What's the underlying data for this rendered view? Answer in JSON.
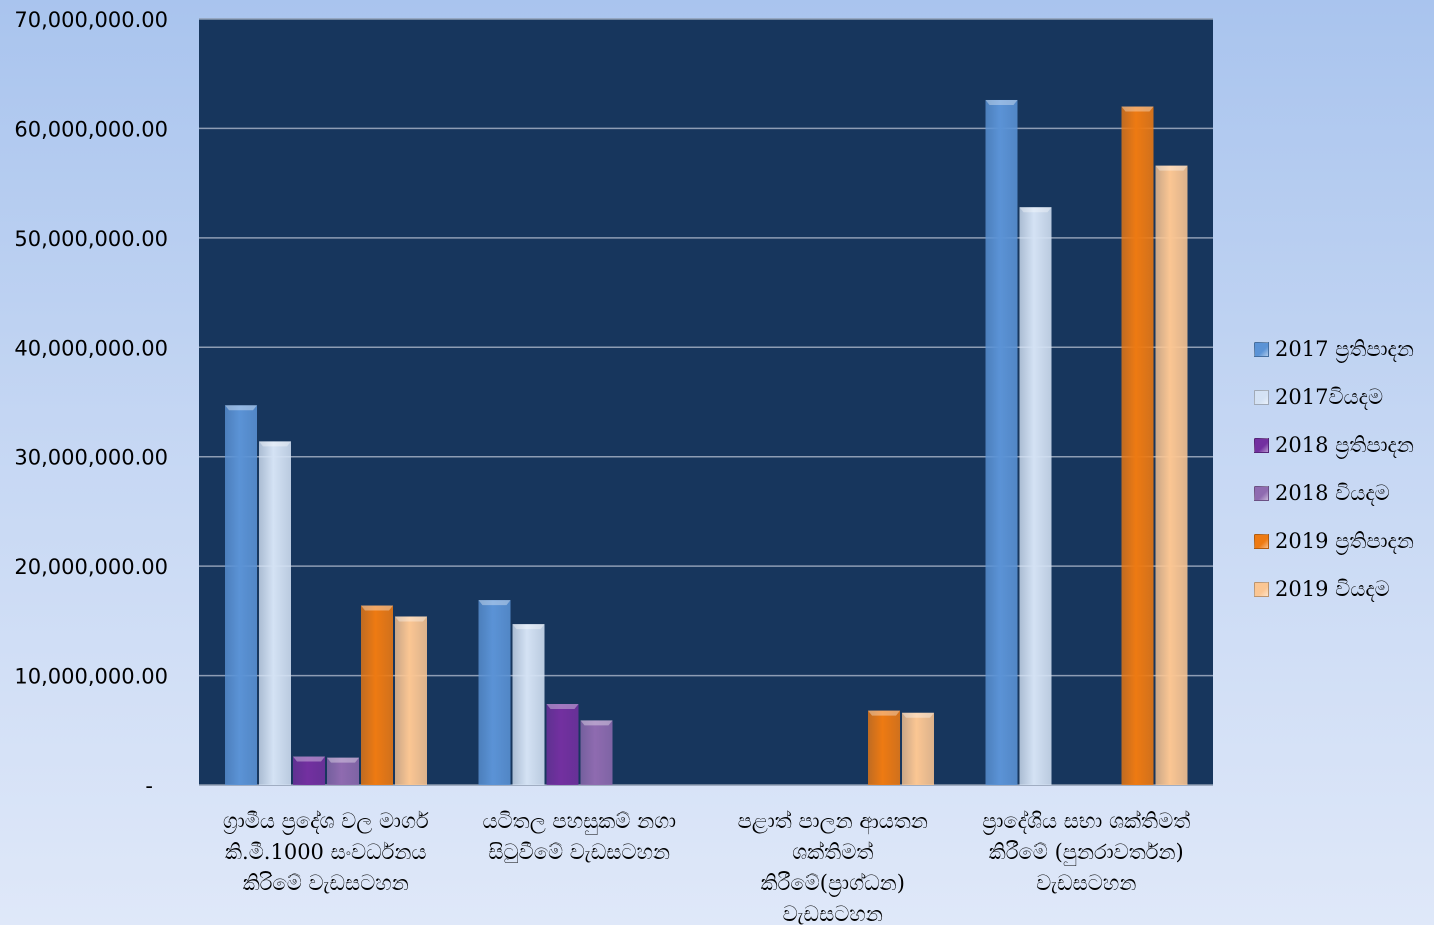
{
  "chart_data": {
    "type": "bar",
    "title": "",
    "xlabel": "",
    "ylabel": "",
    "ylim": [
      0,
      70000000
    ],
    "ytick_values": [
      0,
      10000000,
      20000000,
      30000000,
      40000000,
      50000000,
      60000000,
      70000000
    ],
    "ytick_labels": [
      "-",
      "10,000,000.00",
      "20,000,000.00",
      "30,000,000.00",
      "40,000,000.00",
      "50,000,000.00",
      "60,000,000.00",
      "70,000,000.00"
    ],
    "grid": true,
    "legend_position": "right",
    "categories": [
      [
        "ග්‍රාමීය ප්‍රදේශ වල මාර්ග",
        "කි.මී.1000 සංවර්ධනය",
        "කිරිමේ වැඩසටහන"
      ],
      [
        "යටිතල පහසුකම් නගා",
        "සිටුවීමේ වැඩසටහන"
      ],
      [
        "පළාත් පාලන ආයතන",
        "ශක්තිමත්",
        "කිරීමේ(ප්‍රාග්ධන)",
        "වැඩසටහන"
      ],
      [
        "ප්‍රාදේශිය සභා ශක්තිමත්",
        "කිරීමේ (පුනරාවර්තන)",
        "වැඩසටහන"
      ]
    ],
    "series": [
      {
        "name": "2017 ප්‍රතිපාදන",
        "color": "#5b93d6",
        "values": [
          34700000,
          16900000,
          0,
          62600000
        ]
      },
      {
        "name": "2017වියදම",
        "color": "#d4e2f4",
        "values": [
          31400000,
          14700000,
          0,
          52800000
        ]
      },
      {
        "name": "2018 ප්‍රතිපාදන",
        "color": "#7330a0",
        "values": [
          2600000,
          7400000,
          0,
          0
        ]
      },
      {
        "name": "2018 වියදම",
        "color": "#8f6bb0",
        "values": [
          2500000,
          5900000,
          0,
          0
        ]
      },
      {
        "name": "2019 ප්‍රතිපාදන",
        "color": "#ee7a12",
        "values": [
          16400000,
          0,
          6800000,
          62000000
        ]
      },
      {
        "name": "2019 වියදම",
        "color": "#fbc693",
        "values": [
          15400000,
          0,
          6600000,
          56600000
        ]
      }
    ]
  }
}
